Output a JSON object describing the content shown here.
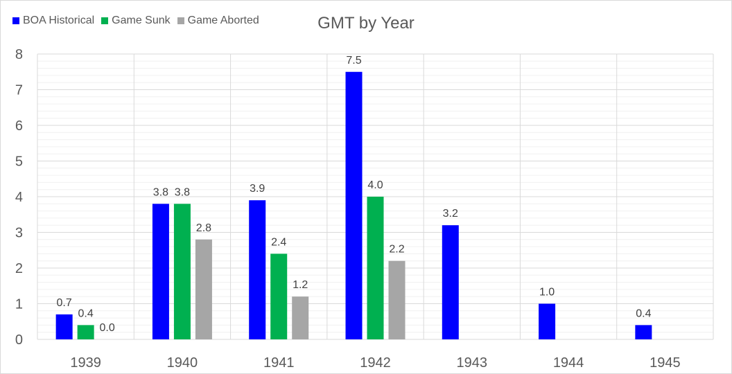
{
  "chart_data": {
    "type": "bar",
    "title": "GMT by Year",
    "xlabel": "",
    "ylabel": "",
    "categories": [
      "1939",
      "1940",
      "1941",
      "1942",
      "1943",
      "1944",
      "1945"
    ],
    "series": [
      {
        "name": "BOA Historical",
        "color": "#0000ff",
        "values": [
          0.7,
          3.8,
          3.9,
          7.5,
          3.2,
          1.0,
          0.4
        ],
        "labels": [
          "0.7",
          "3.8",
          "3.9",
          "7.5",
          "3.2",
          "1.0",
          "0.4"
        ]
      },
      {
        "name": "Game Sunk",
        "color": "#00b050",
        "values": [
          0.4,
          3.8,
          2.4,
          4.0,
          null,
          null,
          null
        ],
        "labels": [
          "0.4",
          "3.8",
          "2.4",
          "4.0",
          "",
          "",
          ""
        ]
      },
      {
        "name": "Game Aborted",
        "color": "#a6a6a6",
        "values": [
          0.0,
          2.8,
          1.2,
          2.2,
          null,
          null,
          null
        ],
        "labels": [
          "0.0",
          "2.8",
          "1.2",
          "2.2",
          "",
          "",
          ""
        ]
      }
    ],
    "ylim": [
      0,
      8
    ],
    "yticks": [
      "0",
      "1",
      "2",
      "3",
      "4",
      "5",
      "6",
      "7",
      "8"
    ],
    "grid": true,
    "legend_position": "top-left"
  }
}
